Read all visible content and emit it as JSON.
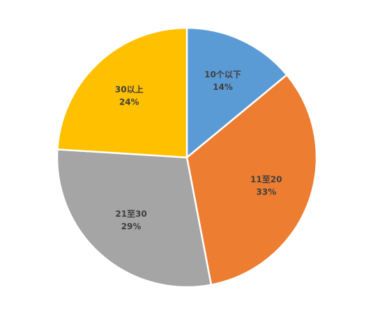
{
  "chart_data": {
    "type": "pie",
    "categories": [
      "10个以下",
      "11至20",
      "21至30",
      "30以上"
    ],
    "values": [
      14,
      33,
      29,
      24
    ],
    "value_labels": [
      "14%",
      "33%",
      "29%",
      "24%"
    ],
    "colors": [
      "#5b9bd5",
      "#ed7d31",
      "#a5a5a5",
      "#ffc000"
    ]
  }
}
